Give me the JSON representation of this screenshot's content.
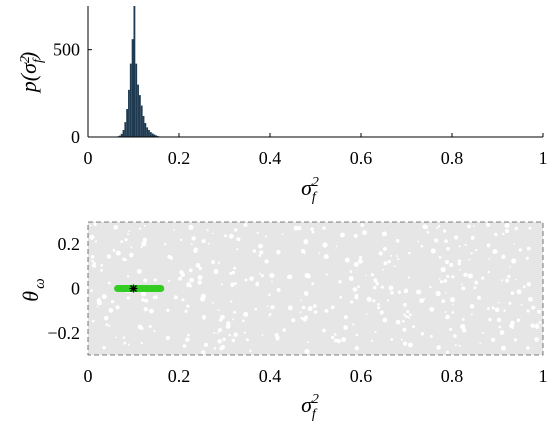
{
  "chart_data": [
    {
      "type": "bar",
      "xlabel": "σ_f^2",
      "ylabel": "p(σ_f^2)",
      "xlim": [
        0,
        1
      ],
      "ylim": [
        0,
        750
      ],
      "xticks": [
        "0",
        "0.2",
        "0.4",
        "0.6",
        "0.8",
        "1"
      ],
      "yticks": [
        "0",
        "500"
      ],
      "bar_color": "#1e3a50",
      "bin_width": 0.004,
      "bins_x": [
        0.064,
        0.068,
        0.072,
        0.076,
        0.08,
        0.084,
        0.088,
        0.092,
        0.096,
        0.1,
        0.104,
        0.108,
        0.112,
        0.116,
        0.12,
        0.124,
        0.128,
        0.132,
        0.136,
        0.14,
        0.144,
        0.148,
        0.152,
        0.156
      ],
      "bins_y": [
        4,
        8,
        18,
        40,
        85,
        160,
        270,
        420,
        560,
        750,
        420,
        300,
        240,
        180,
        120,
        80,
        55,
        40,
        28,
        20,
        14,
        9,
        5,
        3
      ]
    },
    {
      "type": "scatter",
      "xlabel": "σ_f^2",
      "ylabel": "θ_ω",
      "xlim": [
        0,
        1
      ],
      "ylim": [
        -0.3,
        0.3
      ],
      "xticks": [
        "0",
        "0.2",
        "0.4",
        "0.6",
        "0.8",
        "1"
      ],
      "yticks": [
        "0.2",
        "0",
        "−0.2"
      ],
      "prior_color": "#e6e6e6",
      "posterior_color": "#33cc22",
      "posterior_x_range": [
        0.065,
        0.16
      ],
      "posterior_y": 0,
      "true_value": {
        "x": 0.1,
        "y": 0,
        "marker": "*"
      }
    }
  ]
}
